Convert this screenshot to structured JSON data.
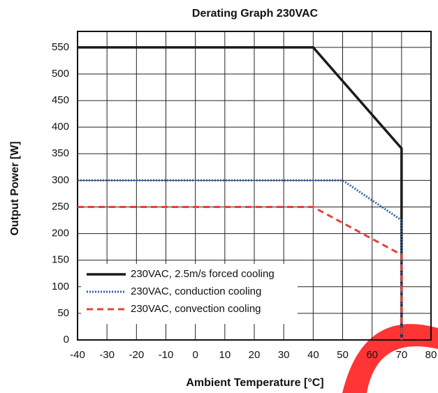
{
  "chart_data": {
    "type": "line",
    "title": "Derating Graph 230VAC",
    "xlabel": "Ambient Temperature [°C]",
    "ylabel": "Output Power [W]",
    "xlim": [
      -40,
      80
    ],
    "xticks": [
      -40,
      -30,
      -20,
      -10,
      0,
      10,
      20,
      30,
      40,
      50,
      60,
      70,
      80
    ],
    "ylim": [
      0,
      580
    ],
    "yticks": [
      0,
      50,
      100,
      150,
      200,
      250,
      300,
      350,
      400,
      450,
      500,
      550
    ],
    "grid": true,
    "legend": "lower left",
    "series": [
      {
        "name": "230VAC, 2.5m/s forced cooling",
        "color": "#1a1a1a",
        "style": "solid",
        "x": [
          -40,
          40,
          70,
          70
        ],
        "values": [
          550,
          550,
          360,
          0
        ]
      },
      {
        "name": "230VAC, conduction cooling",
        "color": "#2f5fa8",
        "style": "dotted",
        "x": [
          -40,
          50,
          70,
          70
        ],
        "values": [
          300,
          300,
          225,
          0
        ]
      },
      {
        "name": "230VAC, convection cooling",
        "color": "#e8403a",
        "style": "dashed",
        "x": [
          -40,
          40,
          70,
          70
        ],
        "values": [
          250,
          250,
          160,
          0
        ]
      }
    ]
  }
}
